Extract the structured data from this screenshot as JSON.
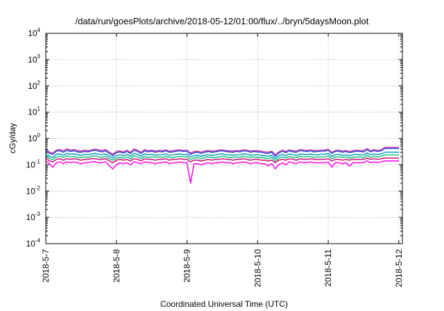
{
  "chart_data": {
    "type": "line",
    "title": "/data/run/goesPlots/archive/2018-05-12/01:00/flux/../bryn/5daysMoon.plot",
    "xlabel": "Coordinated Universal Time (UTC)",
    "ylabel": "cGy/day",
    "yscale": "log",
    "ylim": [
      0.0001,
      10000
    ],
    "xlim": [
      0,
      5.05
    ],
    "grid": true,
    "x_ticks": [
      {
        "x": 0,
        "label": "2018-5-7"
      },
      {
        "x": 1,
        "label": "2018-5-8"
      },
      {
        "x": 2,
        "label": "2018-5-9"
      },
      {
        "x": 3,
        "label": "2018-5-10"
      },
      {
        "x": 4,
        "label": "2018-5-11"
      },
      {
        "x": 5,
        "label": "2018-5-12"
      }
    ],
    "y_ticks": [
      {
        "value": 0.0001,
        "base": "10",
        "exp": "-4"
      },
      {
        "value": 0.001,
        "base": "10",
        "exp": "-3"
      },
      {
        "value": 0.01,
        "base": "10",
        "exp": "-2"
      },
      {
        "value": 0.1,
        "base": "10",
        "exp": "-1"
      },
      {
        "value": 1,
        "base": "10",
        "exp": "0"
      },
      {
        "value": 10,
        "base": "10",
        "exp": "1"
      },
      {
        "value": 100,
        "base": "10",
        "exp": "2"
      },
      {
        "value": 1000,
        "base": "10",
        "exp": "3"
      },
      {
        "value": 10000,
        "base": "10",
        "exp": "4"
      }
    ],
    "x": [
      0.0,
      0.05,
      0.1,
      0.15,
      0.2,
      0.25,
      0.3,
      0.35,
      0.4,
      0.45,
      0.5,
      0.55,
      0.6,
      0.65,
      0.7,
      0.75,
      0.8,
      0.85,
      0.9,
      0.95,
      1.0,
      1.05,
      1.1,
      1.15,
      1.2,
      1.25,
      1.3,
      1.35,
      1.4,
      1.45,
      1.5,
      1.55,
      1.6,
      1.65,
      1.7,
      1.75,
      1.8,
      1.85,
      1.9,
      1.95,
      2.0,
      2.05,
      2.1,
      2.15,
      2.2,
      2.25,
      2.3,
      2.35,
      2.4,
      2.45,
      2.5,
      2.55,
      2.6,
      2.65,
      2.7,
      2.75,
      2.8,
      2.85,
      2.9,
      2.95,
      3.0,
      3.05,
      3.1,
      3.15,
      3.2,
      3.25,
      3.3,
      3.35,
      3.4,
      3.45,
      3.5,
      3.55,
      3.6,
      3.65,
      3.7,
      3.75,
      3.8,
      3.85,
      3.9,
      3.95,
      4.0,
      4.05,
      4.1,
      4.15,
      4.2,
      4.25,
      4.3,
      4.35,
      4.4,
      4.45,
      4.5,
      4.55,
      4.6,
      4.65,
      4.7,
      4.75,
      4.8,
      4.85,
      4.9,
      4.95,
      5.0
    ],
    "series": [
      {
        "color": "#e040a0",
        "values": [
          0.42,
          0.3,
          0.28,
          0.36,
          0.38,
          0.34,
          0.4,
          0.36,
          0.38,
          0.35,
          0.33,
          0.36,
          0.34,
          0.37,
          0.4,
          0.37,
          0.35,
          0.38,
          0.3,
          0.25,
          0.32,
          0.34,
          0.31,
          0.36,
          0.3,
          0.4,
          0.36,
          0.3,
          0.38,
          0.34,
          0.36,
          0.33,
          0.35,
          0.34,
          0.37,
          0.33,
          0.34,
          0.36,
          0.37,
          0.35,
          0.36,
          0.28,
          0.32,
          0.33,
          0.3,
          0.33,
          0.35,
          0.33,
          0.34,
          0.36,
          0.37,
          0.35,
          0.34,
          0.33,
          0.35,
          0.34,
          0.37,
          0.36,
          0.33,
          0.35,
          0.34,
          0.33,
          0.31,
          0.3,
          0.33,
          0.24,
          0.31,
          0.36,
          0.32,
          0.37,
          0.34,
          0.33,
          0.38,
          0.36,
          0.35,
          0.37,
          0.34,
          0.35,
          0.36,
          0.36,
          0.39,
          0.3,
          0.35,
          0.36,
          0.33,
          0.35,
          0.32,
          0.34,
          0.36,
          0.35,
          0.34,
          0.41,
          0.34,
          0.38,
          0.35,
          0.37,
          0.46,
          0.46,
          0.46,
          0.46,
          0.46
        ]
      },
      {
        "color": "#3050e0",
        "values": [
          0.38,
          0.27,
          0.25,
          0.33,
          0.34,
          0.3,
          0.36,
          0.32,
          0.34,
          0.31,
          0.3,
          0.32,
          0.31,
          0.34,
          0.36,
          0.33,
          0.31,
          0.34,
          0.27,
          0.22,
          0.29,
          0.31,
          0.28,
          0.32,
          0.27,
          0.36,
          0.32,
          0.27,
          0.34,
          0.31,
          0.33,
          0.3,
          0.32,
          0.31,
          0.34,
          0.3,
          0.31,
          0.33,
          0.34,
          0.32,
          0.33,
          0.25,
          0.29,
          0.3,
          0.27,
          0.3,
          0.32,
          0.3,
          0.31,
          0.33,
          0.34,
          0.32,
          0.31,
          0.3,
          0.32,
          0.31,
          0.34,
          0.33,
          0.3,
          0.32,
          0.31,
          0.3,
          0.28,
          0.27,
          0.3,
          0.21,
          0.28,
          0.33,
          0.29,
          0.34,
          0.31,
          0.3,
          0.35,
          0.33,
          0.32,
          0.34,
          0.31,
          0.32,
          0.33,
          0.33,
          0.36,
          0.27,
          0.32,
          0.33,
          0.3,
          0.32,
          0.29,
          0.31,
          0.33,
          0.32,
          0.31,
          0.38,
          0.31,
          0.35,
          0.32,
          0.34,
          0.42,
          0.42,
          0.42,
          0.42,
          0.42
        ]
      },
      {
        "color": "#10a0c0",
        "values": [
          0.28,
          0.21,
          0.19,
          0.25,
          0.26,
          0.23,
          0.27,
          0.25,
          0.26,
          0.24,
          0.23,
          0.25,
          0.24,
          0.26,
          0.27,
          0.25,
          0.24,
          0.26,
          0.21,
          0.18,
          0.22,
          0.24,
          0.22,
          0.25,
          0.21,
          0.27,
          0.25,
          0.21,
          0.26,
          0.24,
          0.25,
          0.23,
          0.24,
          0.24,
          0.26,
          0.23,
          0.24,
          0.25,
          0.26,
          0.24,
          0.25,
          0.2,
          0.22,
          0.23,
          0.21,
          0.23,
          0.24,
          0.23,
          0.24,
          0.25,
          0.26,
          0.24,
          0.24,
          0.23,
          0.24,
          0.24,
          0.26,
          0.25,
          0.23,
          0.24,
          0.24,
          0.23,
          0.22,
          0.21,
          0.23,
          0.17,
          0.22,
          0.25,
          0.22,
          0.26,
          0.24,
          0.23,
          0.26,
          0.25,
          0.24,
          0.26,
          0.24,
          0.24,
          0.25,
          0.25,
          0.27,
          0.21,
          0.24,
          0.25,
          0.23,
          0.24,
          0.22,
          0.24,
          0.25,
          0.24,
          0.24,
          0.28,
          0.24,
          0.26,
          0.24,
          0.26,
          0.3,
          0.3,
          0.3,
          0.3,
          0.3
        ]
      },
      {
        "color": "#20c080",
        "values": [
          0.23,
          0.17,
          0.16,
          0.2,
          0.21,
          0.19,
          0.22,
          0.2,
          0.21,
          0.19,
          0.19,
          0.2,
          0.19,
          0.21,
          0.22,
          0.2,
          0.19,
          0.21,
          0.17,
          0.15,
          0.18,
          0.19,
          0.18,
          0.2,
          0.17,
          0.22,
          0.2,
          0.17,
          0.21,
          0.19,
          0.2,
          0.19,
          0.2,
          0.19,
          0.21,
          0.19,
          0.19,
          0.2,
          0.21,
          0.2,
          0.2,
          0.16,
          0.18,
          0.19,
          0.17,
          0.19,
          0.2,
          0.19,
          0.19,
          0.2,
          0.21,
          0.2,
          0.19,
          0.19,
          0.2,
          0.19,
          0.21,
          0.2,
          0.19,
          0.2,
          0.19,
          0.19,
          0.18,
          0.17,
          0.19,
          0.14,
          0.18,
          0.2,
          0.18,
          0.21,
          0.19,
          0.19,
          0.21,
          0.2,
          0.2,
          0.21,
          0.19,
          0.2,
          0.2,
          0.2,
          0.22,
          0.17,
          0.2,
          0.2,
          0.19,
          0.2,
          0.18,
          0.19,
          0.2,
          0.2,
          0.19,
          0.23,
          0.19,
          0.21,
          0.2,
          0.21,
          0.24,
          0.24,
          0.24,
          0.24,
          0.24
        ]
      },
      {
        "color": "#c8147a",
        "values": [
          0.18,
          0.14,
          0.13,
          0.16,
          0.17,
          0.15,
          0.17,
          0.16,
          0.17,
          0.16,
          0.15,
          0.16,
          0.16,
          0.17,
          0.17,
          0.16,
          0.16,
          0.17,
          0.14,
          0.12,
          0.15,
          0.16,
          0.15,
          0.16,
          0.14,
          0.17,
          0.16,
          0.14,
          0.17,
          0.16,
          0.16,
          0.15,
          0.16,
          0.16,
          0.17,
          0.15,
          0.16,
          0.16,
          0.17,
          0.16,
          0.16,
          0.13,
          0.15,
          0.15,
          0.14,
          0.15,
          0.16,
          0.15,
          0.16,
          0.16,
          0.17,
          0.16,
          0.16,
          0.15,
          0.16,
          0.16,
          0.17,
          0.16,
          0.15,
          0.16,
          0.16,
          0.15,
          0.15,
          0.14,
          0.15,
          0.12,
          0.15,
          0.16,
          0.15,
          0.17,
          0.16,
          0.15,
          0.17,
          0.16,
          0.16,
          0.17,
          0.16,
          0.16,
          0.16,
          0.16,
          0.17,
          0.14,
          0.16,
          0.16,
          0.15,
          0.16,
          0.15,
          0.16,
          0.16,
          0.16,
          0.16,
          0.18,
          0.16,
          0.17,
          0.16,
          0.17,
          0.18,
          0.18,
          0.18,
          0.18,
          0.18
        ]
      },
      {
        "color": "#ff10ee",
        "values": [
          0.14,
          0.11,
          0.08,
          0.12,
          0.13,
          0.11,
          0.13,
          0.12,
          0.13,
          0.12,
          0.11,
          0.12,
          0.12,
          0.13,
          0.13,
          0.12,
          0.12,
          0.13,
          0.09,
          0.07,
          0.1,
          0.12,
          0.11,
          0.12,
          0.1,
          0.13,
          0.12,
          0.11,
          0.13,
          0.12,
          0.12,
          0.11,
          0.12,
          0.12,
          0.13,
          0.11,
          0.12,
          0.12,
          0.13,
          0.12,
          0.12,
          0.02,
          0.11,
          0.11,
          0.1,
          0.11,
          0.12,
          0.11,
          0.12,
          0.12,
          0.13,
          0.12,
          0.12,
          0.11,
          0.12,
          0.12,
          0.13,
          0.12,
          0.11,
          0.12,
          0.12,
          0.11,
          0.11,
          0.09,
          0.11,
          0.07,
          0.1,
          0.12,
          0.1,
          0.13,
          0.12,
          0.11,
          0.13,
          0.12,
          0.12,
          0.13,
          0.12,
          0.12,
          0.12,
          0.12,
          0.13,
          0.08,
          0.12,
          0.12,
          0.11,
          0.12,
          0.09,
          0.12,
          0.12,
          0.12,
          0.12,
          0.14,
          0.12,
          0.13,
          0.12,
          0.13,
          0.14,
          0.14,
          0.14,
          0.14,
          0.14
        ]
      }
    ]
  }
}
